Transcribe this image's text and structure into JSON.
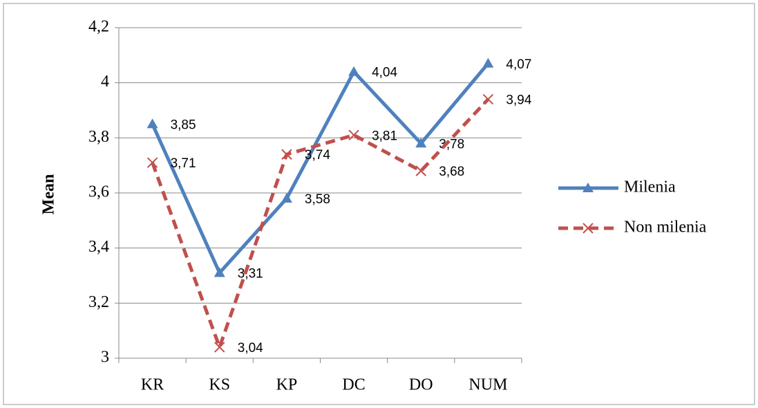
{
  "chart_data": {
    "type": "line",
    "y_label": "Mean",
    "categories": [
      "KR",
      "KS",
      "KP",
      "DC",
      "DO",
      "NUM"
    ],
    "series": [
      {
        "name": "Milenia",
        "color": "#4f81bd",
        "marker": "triangle",
        "dashed": false,
        "values": [
          3.85,
          3.31,
          3.58,
          4.04,
          3.78,
          4.07
        ],
        "value_labels": [
          "3,85",
          "3,31",
          "3,58",
          "4,04",
          "3,78",
          "4,07"
        ]
      },
      {
        "name": "Non milenia",
        "color": "#c0504d",
        "marker": "x",
        "dashed": true,
        "values": [
          3.71,
          3.04,
          3.74,
          3.81,
          3.68,
          3.94
        ],
        "value_labels": [
          "3,71",
          "3,04",
          "3,74",
          "3,81",
          "3,68",
          "3,94"
        ]
      }
    ],
    "ylim": [
      3,
      4.2
    ],
    "yticks": [
      3,
      {
        "value": 3.2,
        "label": "3,2"
      },
      {
        "value": 3.4,
        "label": "3,4"
      },
      {
        "value": 3.6,
        "label": "3,6"
      },
      {
        "value": 3.8,
        "label": "3,8"
      },
      4,
      {
        "value": 4.2,
        "label": "4,2"
      }
    ],
    "grid": true,
    "legend": "right"
  }
}
